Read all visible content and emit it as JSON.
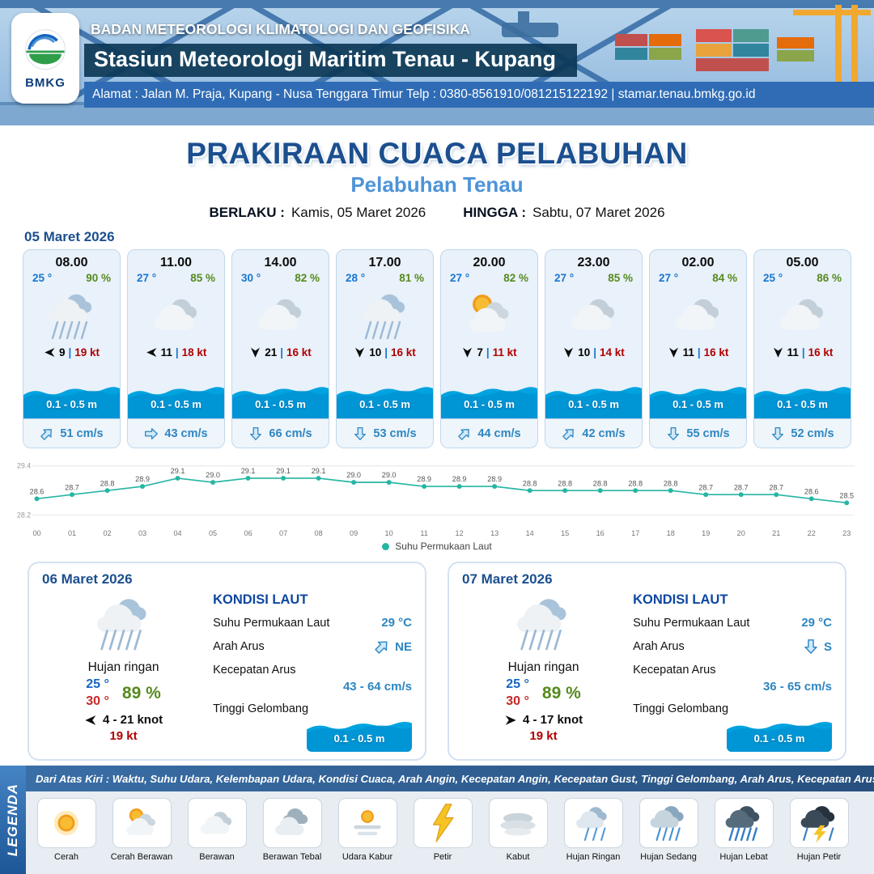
{
  "header": {
    "logo_text": "BMKG",
    "org": "BADAN METEOROLOGI KLIMATOLOGI DAN GEOFISIKA",
    "station": "Stasiun Meteorologi Maritim Tenau - Kupang",
    "address": "Alamat : Jalan M. Praja, Kupang - Nusa Tenggara Timur Telp : 0380-8561910/081215122192  | stamar.tenau.bmkg.go.id"
  },
  "title": {
    "main": "PRAKIRAAN CUACA PELABUHAN",
    "sub": "Pelabuhan Tenau",
    "berlaku_label": "BERLAKU :",
    "berlaku_value": "Kamis, 05 Maret 2026",
    "hingga_label": "HINGGA :",
    "hingga_value": "Sabtu, 07 Maret 2026"
  },
  "forecast_date": "05 Maret 2026",
  "labels": {
    "sep": "|"
  },
  "colors": {
    "accent_blue": "#1b4f8f",
    "light_blue": "#4d94d8",
    "green": "#568a1e",
    "red": "#b00000",
    "wave_blue": "#00a3e0",
    "line_teal": "#26b5a3"
  },
  "hourly": [
    {
      "time": "08.00",
      "temp": "25 °",
      "rh": "90 %",
      "icon": "rain",
      "wind_dir": "W",
      "wind": "9",
      "gust": "19 kt",
      "wave": "0.1 - 0.5 m",
      "cur_dir": "NE",
      "current": "51 cm/s"
    },
    {
      "time": "11.00",
      "temp": "27 °",
      "rh": "85 %",
      "icon": "cloud",
      "wind_dir": "W",
      "wind": "11",
      "gust": "18 kt",
      "wave": "0.1 - 0.5 m",
      "cur_dir": "E",
      "current": "43 cm/s"
    },
    {
      "time": "14.00",
      "temp": "30 °",
      "rh": "82 %",
      "icon": "cloud",
      "wind_dir": "S",
      "wind": "21",
      "gust": "16 kt",
      "wave": "0.1 - 0.5 m",
      "cur_dir": "S",
      "current": "66 cm/s"
    },
    {
      "time": "17.00",
      "temp": "28 °",
      "rh": "81 %",
      "icon": "rain",
      "wind_dir": "S",
      "wind": "10",
      "gust": "16 kt",
      "wave": "0.1 - 0.5 m",
      "cur_dir": "S",
      "current": "53 cm/s"
    },
    {
      "time": "20.00",
      "temp": "27 °",
      "rh": "82 %",
      "icon": "sun-cloud",
      "wind_dir": "S",
      "wind": "7",
      "gust": "11 kt",
      "wave": "0.1 - 0.5 m",
      "cur_dir": "NE",
      "current": "44 cm/s"
    },
    {
      "time": "23.00",
      "temp": "27 °",
      "rh": "85 %",
      "icon": "cloud",
      "wind_dir": "S",
      "wind": "10",
      "gust": "14 kt",
      "wave": "0.1 - 0.5 m",
      "cur_dir": "NE",
      "current": "42 cm/s"
    },
    {
      "time": "02.00",
      "temp": "27 °",
      "rh": "84 %",
      "icon": "cloud",
      "wind_dir": "S",
      "wind": "11",
      "gust": "16 kt",
      "wave": "0.1 - 0.5 m",
      "cur_dir": "S",
      "current": "55 cm/s"
    },
    {
      "time": "05.00",
      "temp": "25 °",
      "rh": "86 %",
      "icon": "cloud",
      "wind_dir": "S",
      "wind": "11",
      "gust": "16 kt",
      "wave": "0.1 - 0.5 m",
      "cur_dir": "S",
      "current": "52 cm/s"
    }
  ],
  "chart_data": {
    "type": "line",
    "x": [
      "00",
      "01",
      "02",
      "03",
      "04",
      "05",
      "06",
      "07",
      "08",
      "09",
      "10",
      "11",
      "12",
      "13",
      "14",
      "15",
      "16",
      "17",
      "18",
      "19",
      "20",
      "21",
      "22",
      "23"
    ],
    "series": [
      {
        "name": "Suhu Permukaan Laut",
        "color": "#26b5a3",
        "values": [
          28.6,
          28.7,
          28.8,
          28.9,
          29.1,
          29.0,
          29.1,
          29.1,
          29.1,
          29.0,
          29.0,
          28.9,
          28.9,
          28.9,
          28.8,
          28.8,
          28.8,
          28.8,
          28.8,
          28.7,
          28.7,
          28.7,
          28.6,
          28.5
        ]
      }
    ],
    "ylim": [
      28.2,
      29.4
    ],
    "yticks": [
      "29.4",
      "28.2"
    ],
    "grid": true,
    "legend_position": "bottom"
  },
  "daily": [
    {
      "date": "06 Maret 2026",
      "icon": "rain",
      "cond": "Hujan ringan",
      "tmin": "25 °",
      "tmax": "30 °",
      "rh": "89 %",
      "wind_dir": "W",
      "wind": "4  - 21 knot",
      "gust": "19 kt",
      "sea": {
        "title": "KONDISI LAUT",
        "sst_label": "Suhu Permukaan Laut",
        "sst": "29 °C",
        "arah_label": "Arah Arus",
        "arah": "NE",
        "arah_dir": "NE",
        "kec_label": "Kecepatan Arus",
        "kec": "43 - 64 cm/s",
        "gel_label": "Tinggi Gelombang",
        "gel": "0.1 - 0.5 m"
      }
    },
    {
      "date": "07 Maret 2026",
      "icon": "rain",
      "cond": "Hujan ringan",
      "tmin": "25 °",
      "tmax": "30 °",
      "rh": "89 %",
      "wind_dir": "E",
      "wind": "4  - 17 knot",
      "gust": "19 kt",
      "sea": {
        "title": "KONDISI LAUT",
        "sst_label": "Suhu Permukaan Laut",
        "sst": "29 °C",
        "arah_label": "Arah Arus",
        "arah": "S",
        "arah_dir": "S",
        "kec_label": "Kecepatan Arus",
        "kec": "36 - 65 cm/s",
        "gel_label": "Tinggi Gelombang",
        "gel": "0.1 - 0.5 m"
      }
    }
  ],
  "legend": {
    "vertical": "LEGENDA",
    "note": "Dari Atas Kiri : Waktu, Suhu Udara, Kelembapan Udara, Kondisi Cuaca, Arah Angin, Kecepatan Angin, Kecepatan Gust, Tinggi Gelombang, Arah Arus, Kecepatan Arus",
    "items": [
      {
        "label": "Cerah",
        "icon": "sun"
      },
      {
        "label": "Cerah Berawan",
        "icon": "sun-cloud"
      },
      {
        "label": "Berawan",
        "icon": "cloud"
      },
      {
        "label": "Berawan Tebal",
        "icon": "clouds"
      },
      {
        "label": "Udara Kabur",
        "icon": "haze"
      },
      {
        "label": "Petir",
        "icon": "thunder"
      },
      {
        "label": "Kabut",
        "icon": "fog"
      },
      {
        "label": "Hujan Ringan",
        "icon": "rain-light"
      },
      {
        "label": "Hujan Sedang",
        "icon": "rain-mid"
      },
      {
        "label": "Hujan Lebat",
        "icon": "rain-heavy"
      },
      {
        "label": "Hujan Petir",
        "icon": "storm"
      }
    ]
  }
}
